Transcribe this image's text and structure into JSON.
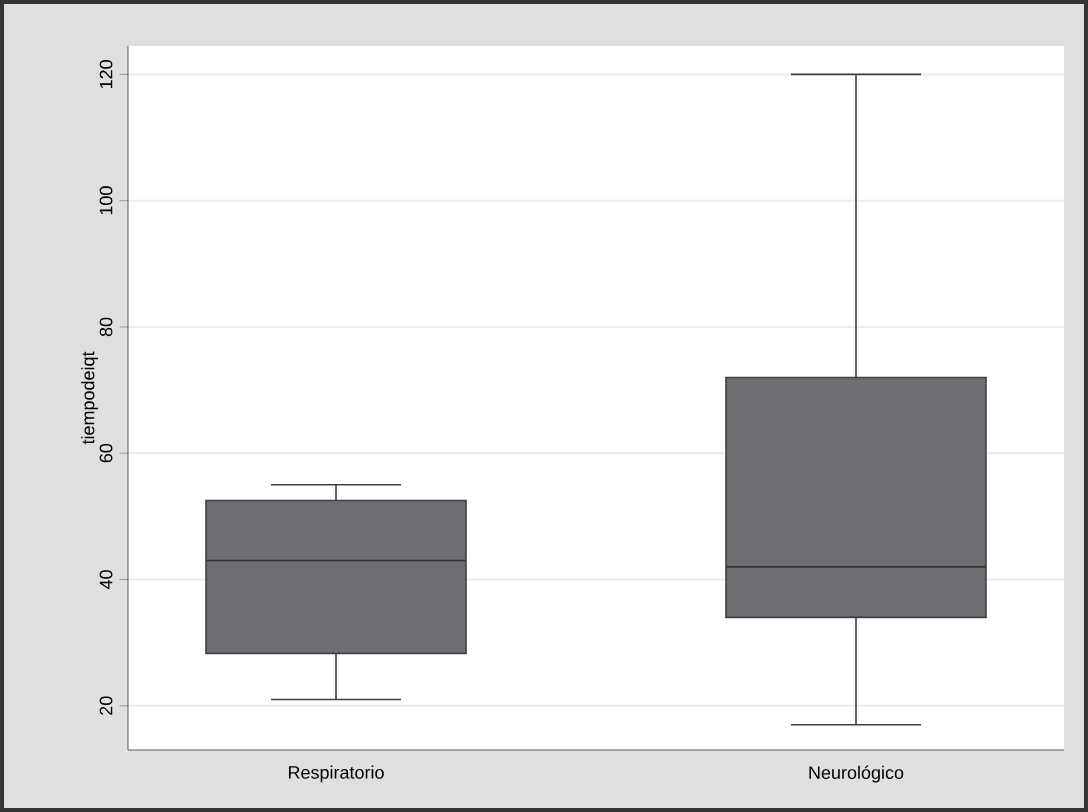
{
  "chart_data": {
    "type": "box",
    "ylabel": "tiempodeiqt",
    "categories": [
      "Respiratorio",
      "Neurológico"
    ],
    "boxes": [
      {
        "low": 21,
        "q1": 28.3,
        "median": 43,
        "q3": 52.5,
        "high": 55
      },
      {
        "low": 17,
        "q1": 34,
        "median": 42,
        "q3": 72,
        "high": 120
      }
    ],
    "color": "#6d6e71",
    "ylim": [
      13,
      124.5
    ],
    "yticks": [
      20,
      40,
      60,
      80,
      100,
      120
    ],
    "grid": "y"
  }
}
